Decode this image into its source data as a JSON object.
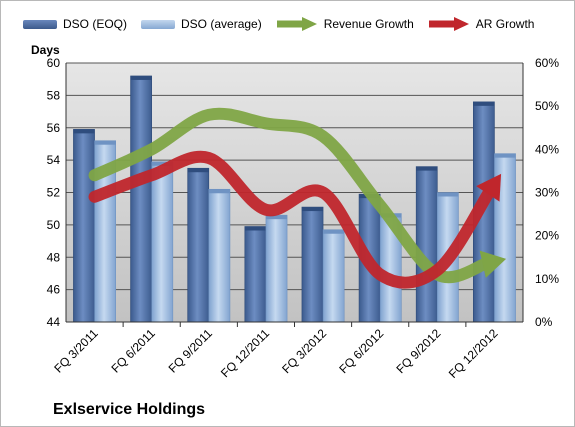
{
  "chart_data": {
    "type": "bar",
    "title": "",
    "ylabel": "Days",
    "y2label": "",
    "categories": [
      "FQ 3/2011",
      "FQ 6/2011",
      "FQ 9/2011",
      "FQ 12/2011",
      "FQ 3/2012",
      "FQ 6/2012",
      "FQ 9/2012",
      "FQ 12/2012"
    ],
    "ylim": [
      44,
      60
    ],
    "y_ticks": [
      "44",
      "46",
      "48",
      "50",
      "52",
      "54",
      "56",
      "58",
      "60"
    ],
    "y2lim": [
      0,
      60
    ],
    "y2_ticks": [
      "0%",
      "10%",
      "20%",
      "30%",
      "40%",
      "50%",
      "60%"
    ],
    "series": [
      {
        "name": "DSO (EOQ)",
        "kind": "bar",
        "axis": "left",
        "color": "#4a6aa0",
        "values": [
          55.9,
          59.2,
          53.5,
          49.9,
          51.1,
          51.9,
          53.6,
          57.6
        ]
      },
      {
        "name": "DSO (average)",
        "kind": "bar",
        "axis": "left",
        "color": "#9fbde0",
        "values": [
          55.2,
          53.9,
          52.2,
          50.6,
          49.7,
          50.7,
          52.0,
          54.4
        ]
      },
      {
        "name": "Revenue Growth",
        "kind": "arrow-line",
        "axis": "right",
        "color": "#7fa546",
        "values": [
          0.34,
          0.4,
          0.48,
          0.46,
          0.43,
          0.27,
          0.11,
          0.14
        ]
      },
      {
        "name": "AR Growth",
        "kind": "arrow-line",
        "axis": "right",
        "color": "#c0262c",
        "values": [
          0.29,
          0.34,
          0.38,
          0.26,
          0.3,
          0.11,
          0.12,
          0.32
        ]
      }
    ],
    "grid": true,
    "legend_position": "top"
  },
  "axis_unit_label": "Days",
  "company_label": "Exlservice Holdings",
  "colors": {
    "plot_background_top": "#e4e4e4",
    "plot_background_bottom": "#c4c4c4",
    "gridline": "#555555"
  }
}
